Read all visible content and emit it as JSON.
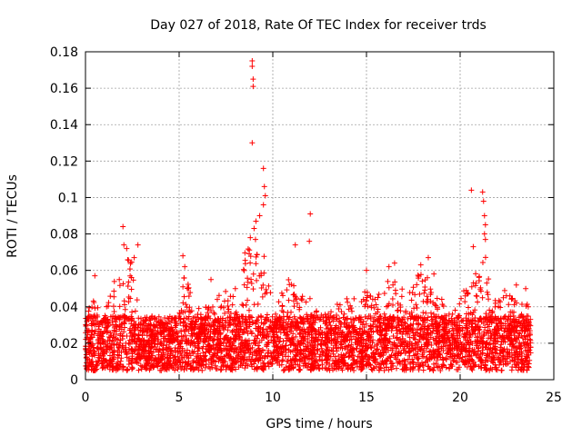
{
  "chart_data": {
    "type": "scatter",
    "title": "Day 027 of 2018, Rate Of TEC Index for receiver trds",
    "xlabel": "GPS time / hours",
    "ylabel": "ROTI / TECUs",
    "xlim": [
      0,
      25
    ],
    "ylim": [
      0,
      0.18
    ],
    "xticks": [
      0,
      5,
      10,
      15,
      20,
      25
    ],
    "yticks": [
      0,
      0.02,
      0.04,
      0.06,
      0.08,
      0.1,
      0.12,
      0.14,
      0.16,
      0.18
    ],
    "xtick_labels": [
      "0",
      "5",
      "10",
      "15",
      "20",
      "25"
    ],
    "ytick_labels": [
      "0",
      "0.02",
      "0.04",
      "0.06",
      "0.08",
      "0.1",
      "0.12",
      "0.14",
      "0.16",
      "0.18"
    ],
    "grid": true,
    "marker": "+",
    "color": "#ff0000",
    "x_extent": [
      0,
      23.8
    ],
    "baseline_band": [
      0.005,
      0.035
    ],
    "notable_points": [
      {
        "x": 8.9,
        "y": 0.175
      },
      {
        "x": 8.9,
        "y": 0.172
      },
      {
        "x": 8.95,
        "y": 0.165
      },
      {
        "x": 8.95,
        "y": 0.161
      },
      {
        "x": 8.9,
        "y": 0.13
      },
      {
        "x": 9.5,
        "y": 0.116
      },
      {
        "x": 9.55,
        "y": 0.106
      },
      {
        "x": 9.6,
        "y": 0.101
      },
      {
        "x": 9.5,
        "y": 0.096
      },
      {
        "x": 9.3,
        "y": 0.09
      },
      {
        "x": 9.1,
        "y": 0.087
      },
      {
        "x": 9.0,
        "y": 0.083
      },
      {
        "x": 8.8,
        "y": 0.078
      },
      {
        "x": 12.0,
        "y": 0.091
      },
      {
        "x": 11.95,
        "y": 0.076
      },
      {
        "x": 20.6,
        "y": 0.104
      },
      {
        "x": 21.2,
        "y": 0.103
      },
      {
        "x": 21.25,
        "y": 0.098
      },
      {
        "x": 21.3,
        "y": 0.09
      },
      {
        "x": 21.35,
        "y": 0.085
      },
      {
        "x": 21.3,
        "y": 0.08
      },
      {
        "x": 21.35,
        "y": 0.077
      },
      {
        "x": 20.7,
        "y": 0.073
      },
      {
        "x": 2.0,
        "y": 0.084
      },
      {
        "x": 2.05,
        "y": 0.074
      },
      {
        "x": 2.2,
        "y": 0.072
      },
      {
        "x": 2.8,
        "y": 0.074
      },
      {
        "x": 2.6,
        "y": 0.067
      },
      {
        "x": 5.2,
        "y": 0.068
      },
      {
        "x": 5.3,
        "y": 0.062
      },
      {
        "x": 11.2,
        "y": 0.074
      },
      {
        "x": 18.3,
        "y": 0.067
      },
      {
        "x": 17.9,
        "y": 0.063
      },
      {
        "x": 18.6,
        "y": 0.058
      },
      {
        "x": 16.5,
        "y": 0.064
      },
      {
        "x": 16.2,
        "y": 0.062
      },
      {
        "x": 23.0,
        "y": 0.052
      },
      {
        "x": 23.5,
        "y": 0.05
      },
      {
        "x": 0.5,
        "y": 0.057
      },
      {
        "x": 15.0,
        "y": 0.06
      },
      {
        "x": 6.7,
        "y": 0.055
      },
      {
        "x": 8.0,
        "y": 0.05
      }
    ],
    "activity_envelope": [
      {
        "x": 0.0,
        "y": 0.035
      },
      {
        "x": 0.5,
        "y": 0.05
      },
      {
        "x": 1.0,
        "y": 0.035
      },
      {
        "x": 1.5,
        "y": 0.055
      },
      {
        "x": 2.0,
        "y": 0.07
      },
      {
        "x": 2.5,
        "y": 0.065
      },
      {
        "x": 3.0,
        "y": 0.035
      },
      {
        "x": 3.5,
        "y": 0.03
      },
      {
        "x": 4.0,
        "y": 0.032
      },
      {
        "x": 4.5,
        "y": 0.03
      },
      {
        "x": 5.0,
        "y": 0.04
      },
      {
        "x": 5.3,
        "y": 0.06
      },
      {
        "x": 5.8,
        "y": 0.04
      },
      {
        "x": 6.5,
        "y": 0.04
      },
      {
        "x": 7.0,
        "y": 0.045
      },
      {
        "x": 7.5,
        "y": 0.05
      },
      {
        "x": 8.0,
        "y": 0.045
      },
      {
        "x": 8.5,
        "y": 0.07
      },
      {
        "x": 9.0,
        "y": 0.08
      },
      {
        "x": 9.5,
        "y": 0.07
      },
      {
        "x": 10.0,
        "y": 0.045
      },
      {
        "x": 10.5,
        "y": 0.05
      },
      {
        "x": 11.0,
        "y": 0.06
      },
      {
        "x": 11.5,
        "y": 0.045
      },
      {
        "x": 12.0,
        "y": 0.05
      },
      {
        "x": 12.5,
        "y": 0.035
      },
      {
        "x": 13.0,
        "y": 0.038
      },
      {
        "x": 13.5,
        "y": 0.042
      },
      {
        "x": 14.0,
        "y": 0.045
      },
      {
        "x": 14.5,
        "y": 0.045
      },
      {
        "x": 15.0,
        "y": 0.05
      },
      {
        "x": 15.5,
        "y": 0.045
      },
      {
        "x": 16.0,
        "y": 0.055
      },
      {
        "x": 16.5,
        "y": 0.055
      },
      {
        "x": 17.0,
        "y": 0.05
      },
      {
        "x": 17.5,
        "y": 0.055
      },
      {
        "x": 18.0,
        "y": 0.06
      },
      {
        "x": 18.5,
        "y": 0.055
      },
      {
        "x": 19.0,
        "y": 0.045
      },
      {
        "x": 19.5,
        "y": 0.035
      },
      {
        "x": 20.0,
        "y": 0.045
      },
      {
        "x": 20.5,
        "y": 0.055
      },
      {
        "x": 21.0,
        "y": 0.06
      },
      {
        "x": 21.3,
        "y": 0.07
      },
      {
        "x": 21.8,
        "y": 0.045
      },
      {
        "x": 22.5,
        "y": 0.05
      },
      {
        "x": 23.0,
        "y": 0.045
      },
      {
        "x": 23.5,
        "y": 0.045
      },
      {
        "x": 23.8,
        "y": 0.035
      }
    ]
  }
}
